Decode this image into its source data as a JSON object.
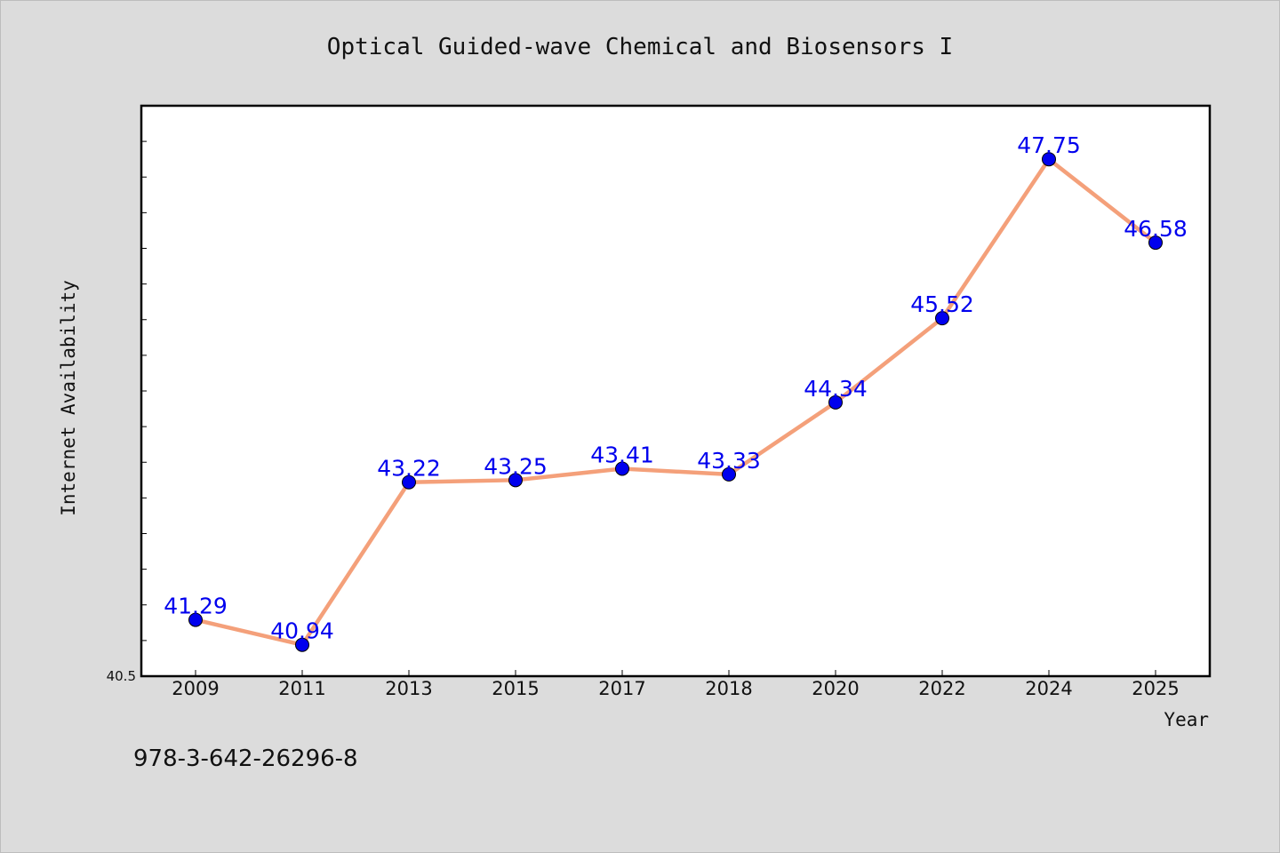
{
  "chart_data": {
    "type": "line",
    "title": "Optical Guided-wave Chemical and Biosensors I",
    "xlabel": "Year",
    "ylabel": "Internet Availability",
    "categories": [
      "2009",
      "2011",
      "2013",
      "2015",
      "2017",
      "2018",
      "2020",
      "2022",
      "2024",
      "2025"
    ],
    "series": [
      {
        "values": [
          41.29,
          40.94,
          43.22,
          43.25,
          43.41,
          43.33,
          44.34,
          45.52,
          47.75,
          46.58
        ],
        "labels": [
          "41.29",
          "40.94",
          "43.22",
          "43.25",
          "43.41",
          "43.33",
          "44.34",
          "45.52",
          "47.75",
          "46.58"
        ]
      }
    ],
    "ylim": [
      40.5,
      48.5
    ],
    "y_tick_label": "40.5",
    "grid": false,
    "legend": "none",
    "colors": {
      "line": "#f4a07a",
      "marker": "#0000ee",
      "data_label": "#0000ee",
      "background": "#dcdcdc",
      "plot_background": "#ffffff"
    }
  },
  "footer": {
    "isbn": "978-3-642-26296-8"
  }
}
